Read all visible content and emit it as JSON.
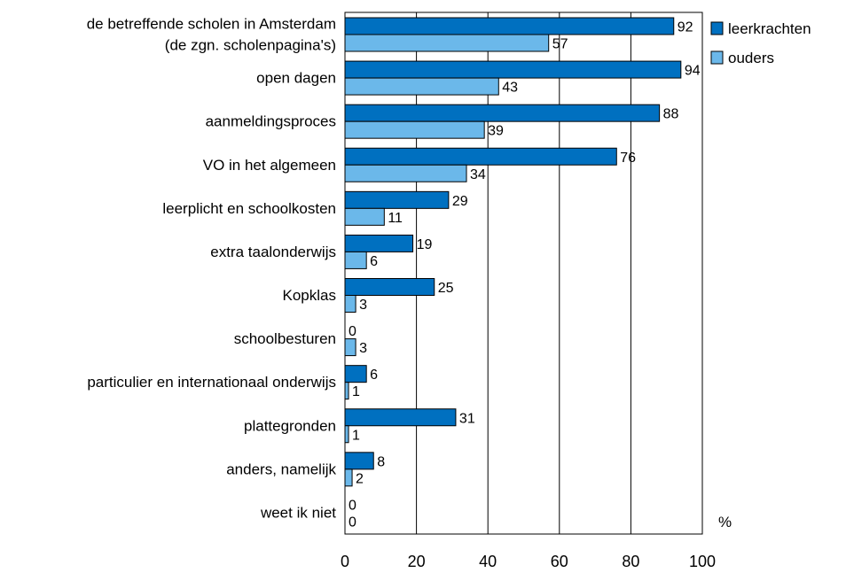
{
  "chart_data": {
    "type": "bar",
    "orientation": "horizontal",
    "categories": [
      [
        "de betreffende scholen in Amsterdam",
        "(de zgn. scholenpagina's)"
      ],
      [
        "open dagen"
      ],
      [
        "aanmeldingsproces"
      ],
      [
        "VO in het algemeen"
      ],
      [
        "leerplicht en schoolkosten"
      ],
      [
        "extra taalonderwijs"
      ],
      [
        "Kopklas"
      ],
      [
        "schoolbesturen"
      ],
      [
        "particulier en internationaal onderwijs"
      ],
      [
        "plattegronden"
      ],
      [
        "anders, namelijk"
      ],
      [
        "weet ik niet"
      ]
    ],
    "series": [
      {
        "name": "leerkrachten",
        "color": "#0070C0",
        "values": [
          92,
          94,
          88,
          76,
          29,
          19,
          25,
          0,
          6,
          31,
          8,
          0
        ]
      },
      {
        "name": "ouders",
        "color": "#6BB8EA",
        "values": [
          57,
          43,
          39,
          34,
          11,
          6,
          3,
          3,
          1,
          1,
          2,
          0
        ]
      }
    ],
    "xlim": [
      0,
      100
    ],
    "xticks": [
      0,
      20,
      40,
      60,
      80,
      100
    ],
    "unit_label": "%",
    "grid": "vertical",
    "legend": "top-right"
  }
}
